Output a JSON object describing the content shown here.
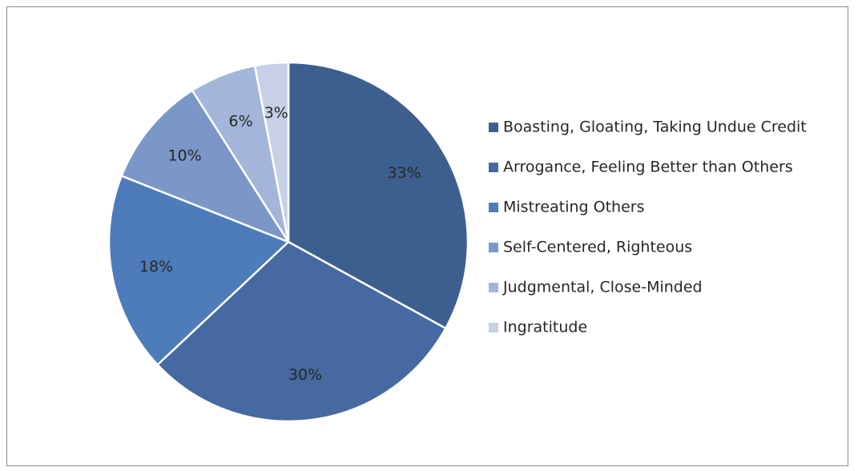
{
  "chart_data": {
    "type": "pie",
    "title": "",
    "slices": [
      {
        "label": "Boasting, Gloating, Taking Undue Credit",
        "value": 33,
        "display": "33%",
        "color": "#3d5f8f"
      },
      {
        "label": "Arrogance, Feeling Better than Others",
        "value": 30,
        "display": "30%",
        "color": "#4569a0"
      },
      {
        "label": "Mistreating Others",
        "value": 18,
        "display": "18%",
        "color": "#4e7cba"
      },
      {
        "label": "Self-Centered, Righteous",
        "value": 10,
        "display": "10%",
        "color": "#7b97c8"
      },
      {
        "label": "Judgmental, Close-Minded",
        "value": 6,
        "display": "6%",
        "color": "#a3b5d9"
      },
      {
        "label": "Ingratitude",
        "value": 3,
        "display": "3%",
        "color": "#c7d0e6"
      }
    ],
    "legend_position": "right"
  }
}
